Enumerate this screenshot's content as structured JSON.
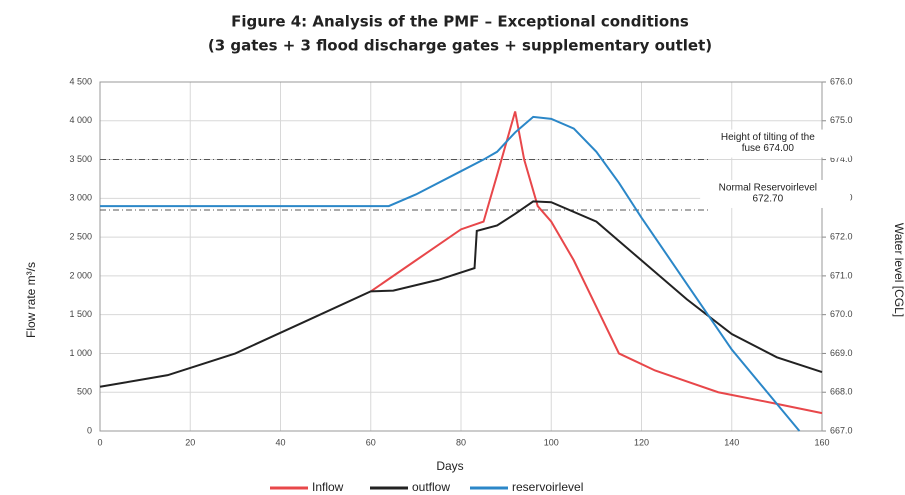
{
  "chart_data": {
    "type": "line",
    "title": [
      "Figure 4: Analysis of the PMF – Exceptional conditions",
      "(3 gates + 3 flood discharge gates + supplementary outlet)"
    ],
    "x_label": "Days",
    "y_label": "Flow rate m³/s",
    "y2_label": "Water level [CGL]",
    "xlim": [
      0,
      160
    ],
    "xticks": [
      0,
      20,
      40,
      60,
      80,
      100,
      120,
      140,
      160
    ],
    "ylim": [
      0,
      4500
    ],
    "yticks": [
      0,
      500,
      {
        "value": 1000,
        "label": "1 000"
      },
      {
        "value": 1500,
        "label": "1 500"
      },
      {
        "value": 2000,
        "label": "2 000"
      },
      {
        "value": 2500,
        "label": "2 500"
      },
      {
        "value": 3000,
        "label": "3 000"
      },
      {
        "value": 3500,
        "label": "3 500"
      },
      {
        "value": 4000,
        "label": "4 000"
      },
      {
        "value": 4500,
        "label": "4 500"
      }
    ],
    "y2lim": [
      667,
      676
    ],
    "y2ticks": [
      {
        "value": 667,
        "label": "667.0"
      },
      {
        "value": 668,
        "label": "668.0"
      },
      {
        "value": 669,
        "label": "669.0"
      },
      {
        "value": 670,
        "label": "670.0"
      },
      {
        "value": 671,
        "label": "671.0"
      },
      {
        "value": 672,
        "label": "672.0"
      },
      {
        "value": 673,
        "label": "673.0"
      },
      {
        "value": 674,
        "label": "674.0"
      },
      {
        "value": 675,
        "label": "675.0"
      },
      {
        "value": 676,
        "label": "676.0"
      }
    ],
    "grid": true,
    "legend": "bottom",
    "reference_lines": [
      {
        "value": 674.0,
        "axis": "y2",
        "label": [
          "Height of tilting of the",
          "fuse 674.00"
        ]
      },
      {
        "value": 672.7,
        "axis": "y2",
        "label": [
          "Normal Reservoirlevel",
          "672.70"
        ]
      }
    ],
    "series": [
      {
        "name": "Inflow",
        "color": "#e8474a",
        "x": [
          60,
          70,
          80,
          85,
          88,
          92,
          94,
          97,
          100,
          105,
          110,
          115,
          123,
          137,
          150,
          160
        ],
        "values": [
          1800,
          2200,
          2600,
          2700,
          3300,
          4120,
          3500,
          2900,
          2700,
          2200,
          1600,
          1000,
          780,
          500,
          350,
          230
        ]
      },
      {
        "name": "outflow",
        "color": "#222222",
        "x": [
          0,
          15,
          30,
          45,
          60,
          65,
          75,
          83,
          83.5,
          88,
          92,
          96,
          100,
          110,
          120,
          130,
          140,
          150,
          160
        ],
        "values": [
          570,
          720,
          1000,
          1400,
          1800,
          1810,
          1950,
          2100,
          2580,
          2650,
          2800,
          2960,
          2950,
          2700,
          2200,
          1700,
          1250,
          950,
          760
        ]
      },
      {
        "name": "reservoirlevel",
        "color": "#2b87c8",
        "axis": "y2",
        "x": [
          0,
          64,
          70,
          80,
          85,
          88,
          92,
          96,
          100,
          105,
          110,
          115,
          120,
          130,
          140,
          150,
          155
        ],
        "values": [
          672.8,
          672.8,
          673.1,
          673.7,
          674.0,
          674.2,
          674.7,
          675.1,
          675.05,
          674.8,
          674.2,
          673.4,
          672.5,
          670.8,
          669.1,
          667.7,
          667.0
        ]
      }
    ]
  }
}
